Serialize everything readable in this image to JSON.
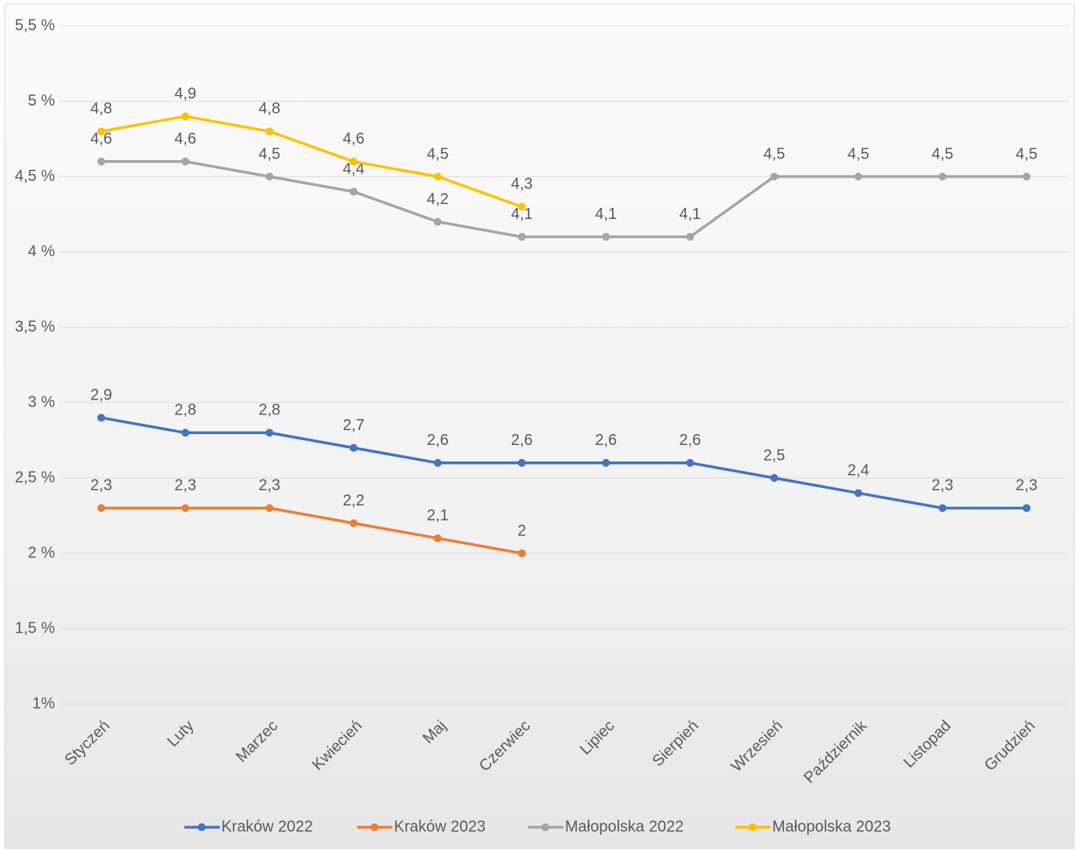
{
  "chart_data": {
    "type": "line",
    "categories": [
      "Styczeń",
      "Luty",
      "Marzec",
      "Kwiecień",
      "Maj",
      "Czerwiec",
      "Lipiec",
      "Sierpień",
      "Wrzesień",
      "Październik",
      "Listopad",
      "Grudzień"
    ],
    "series": [
      {
        "name": "Kraków 2022",
        "color": "#4472c4",
        "values": [
          2.9,
          2.8,
          2.8,
          2.7,
          2.6,
          2.6,
          2.6,
          2.6,
          2.5,
          2.4,
          2.3,
          2.3
        ],
        "value_labels": [
          "2,9",
          "2,8",
          "2,8",
          "2,7",
          "2,6",
          "2,6",
          "2,6",
          "2,6",
          "2,5",
          "2,4",
          "2,3",
          "2,3"
        ]
      },
      {
        "name": "Kraków 2023",
        "color": "#ed7d31",
        "values": [
          2.3,
          2.3,
          2.3,
          2.2,
          2.1,
          2,
          null,
          null,
          null,
          null,
          null,
          null
        ],
        "value_labels": [
          "2,3",
          "2,3",
          "2,3",
          "2,2",
          "2,1",
          "2",
          null,
          null,
          null,
          null,
          null,
          null
        ]
      },
      {
        "name": "Małopolska 2022",
        "color": "#a5a5a5",
        "values": [
          4.6,
          4.6,
          4.5,
          4.4,
          4.2,
          4.1,
          4.1,
          4.1,
          4.5,
          4.5,
          4.5,
          4.5
        ],
        "value_labels": [
          "4,6",
          "4,6",
          "4,5",
          "4,4",
          "4,2",
          "4,1",
          "4,1",
          "4,1",
          "4,5",
          "4,5",
          "4,5",
          "4,5"
        ]
      },
      {
        "name": "Małopolska 2023",
        "color": "#ffc000",
        "values": [
          4.8,
          4.9,
          4.8,
          4.6,
          4.5,
          4.3,
          null,
          null,
          null,
          null,
          null,
          null
        ],
        "value_labels": [
          "4,8",
          "4,9",
          "4,8",
          "4,6",
          "4,5",
          "4,3",
          null,
          null,
          null,
          null,
          null,
          null
        ]
      }
    ],
    "ylim": [
      1,
      5.5
    ],
    "yticks": [
      {
        "value": 1,
        "label": "1%"
      },
      {
        "value": 1.5,
        "label": "1,5 %"
      },
      {
        "value": 2,
        "label": "2 %"
      },
      {
        "value": 2.5,
        "label": "2,5 %"
      },
      {
        "value": 3,
        "label": "3 %"
      },
      {
        "value": 3.5,
        "label": "3,5 %"
      },
      {
        "value": 4,
        "label": "4 %"
      },
      {
        "value": 4.5,
        "label": "4,5 %"
      },
      {
        "value": 5,
        "label": "5 %"
      },
      {
        "value": 5.5,
        "label": "5,5 %"
      }
    ],
    "grid": true,
    "legend": "bottom"
  }
}
